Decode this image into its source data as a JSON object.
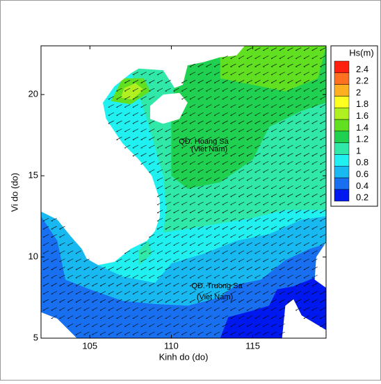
{
  "chart_data": {
    "type": "contour",
    "xlabel": "Kinh do (do)",
    "ylabel": "Vi do (do)",
    "xlim": [
      102,
      119.5
    ],
    "ylim": [
      5,
      23
    ],
    "xticks": [
      105,
      110,
      115
    ],
    "yticks": [
      5,
      10,
      15,
      20
    ],
    "colorbar": {
      "title": "Hs(m)",
      "levels": [
        0.2,
        0.4,
        0.6,
        0.8,
        1,
        1.2,
        1.4,
        1.6,
        1.8,
        2,
        2.2,
        2.4
      ],
      "colors": [
        "#0018f0",
        "#1870f0",
        "#18b8f0",
        "#20f0f0",
        "#30e8a8",
        "#20d050",
        "#60e020",
        "#b0f020",
        "#ffff20",
        "#ffb020",
        "#ff7020",
        "#ff2010"
      ]
    },
    "annotations": [
      "QĐ. Hoang Sa",
      "(Viet Nam)",
      "QĐ. Truong Sa",
      "(Viet Nam)"
    ]
  }
}
